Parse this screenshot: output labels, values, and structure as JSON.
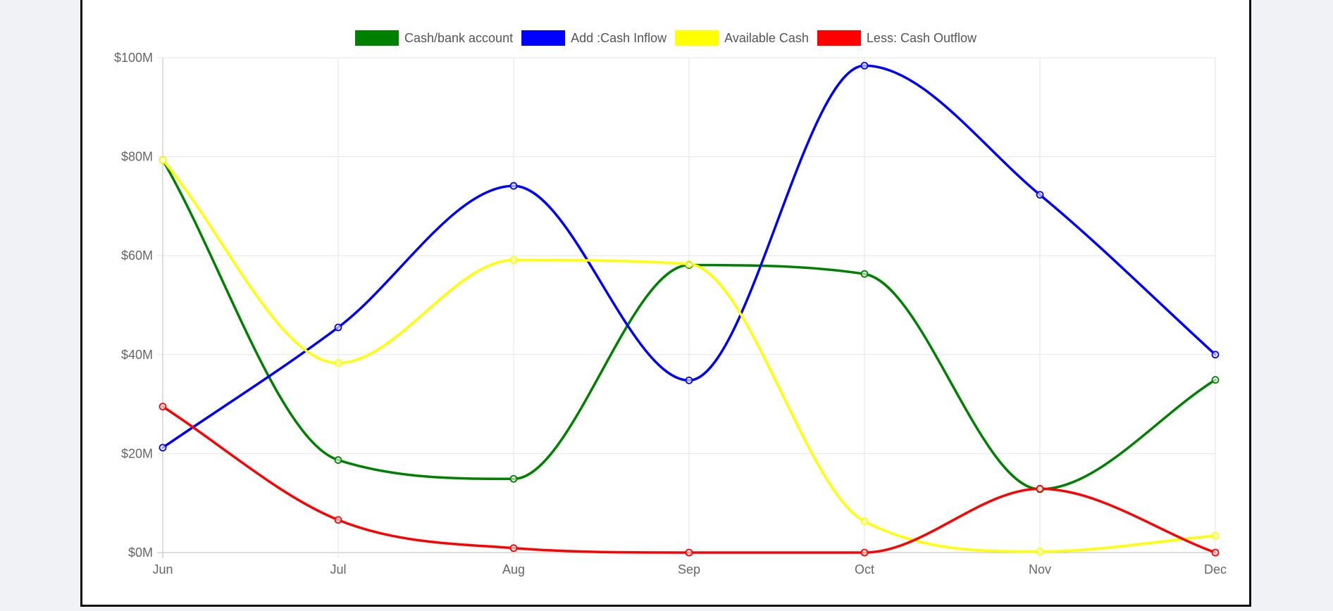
{
  "chart_data": {
    "type": "line",
    "categories": [
      "Jun",
      "Jul",
      "Aug",
      "Sep",
      "Oct",
      "Nov",
      "Dec"
    ],
    "ylim": [
      0,
      100
    ],
    "y_ticks": [
      "$0M",
      "$20M",
      "$40M",
      "$60M",
      "$80M",
      "$100M"
    ],
    "y_tick_values": [
      0,
      20,
      40,
      60,
      80,
      100
    ],
    "grid": true,
    "legend_position": "top-center",
    "series": [
      {
        "name": "Cash/bank account",
        "color": "#008000",
        "values": [
          79.3,
          18.7,
          14.9,
          58.1,
          56.3,
          12.8,
          34.9
        ]
      },
      {
        "name": "Add :Cash Inflow",
        "color": "#0000ff",
        "values": [
          21.2,
          45.5,
          74.1,
          34.8,
          98.4,
          72.3,
          40.0
        ]
      },
      {
        "name": "Available Cash",
        "color": "#ffff00",
        "values": [
          79.3,
          38.3,
          59.1,
          58.3,
          6.3,
          0.2,
          3.4
        ]
      },
      {
        "name": "Less: Cash Outflow",
        "color": "#ff0000",
        "values": [
          29.5,
          6.6,
          0.9,
          0.0,
          0.0,
          12.9,
          0.0
        ]
      }
    ]
  }
}
